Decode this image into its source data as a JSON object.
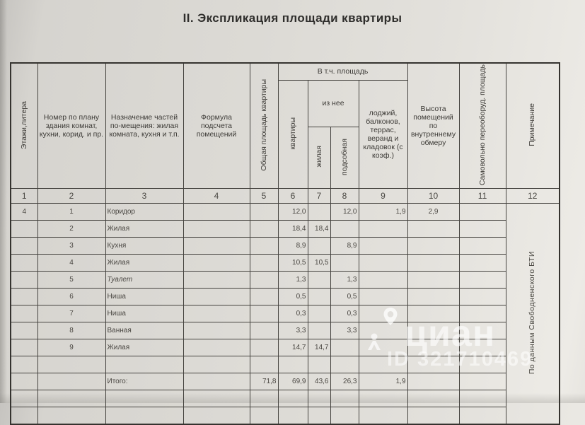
{
  "title": "II. Экспликация площади квартиры",
  "table": {
    "headers": {
      "col1": "Этажи,литера",
      "col2": "Номер по плану здания комнат, кухни, корид. и пр.",
      "col3": "Назначение частей по-мещения: жилая комната, кухня и т.п.",
      "col4": "Формула подсчета помещений",
      "col5": "Общая площадь квартиры",
      "group_area": "В т.ч. площадь",
      "col6": "квартиры",
      "group_iznee": "из нее",
      "col7": "жилая",
      "col8": "подсобная",
      "col9": "лоджий, балконов, террас, веранд и кладовок (с коэф.)",
      "col10": "Высота помещений по внутреннему обмеру",
      "col11": "Самовольно переоборуд. площадь",
      "col12": "Примечание"
    },
    "column_numbers": [
      "1",
      "2",
      "3",
      "4",
      "5",
      "6",
      "7",
      "8",
      "9",
      "10",
      "11",
      "12"
    ],
    "rows": [
      {
        "cells": [
          "4",
          "1",
          "Коридор",
          "",
          "",
          "12,0",
          "",
          "12,0",
          "1,9",
          "2,9",
          ""
        ]
      },
      {
        "cells": [
          "",
          "2",
          "Жилая",
          "",
          "",
          "18,4",
          "18,4",
          "",
          "",
          "",
          ""
        ]
      },
      {
        "cells": [
          "",
          "3",
          "Кухня",
          "",
          "",
          "8,9",
          "",
          "8,9",
          "",
          "",
          ""
        ]
      },
      {
        "cells": [
          "",
          "4",
          "Жилая",
          "",
          "",
          "10,5",
          "10,5",
          "",
          "",
          "",
          ""
        ]
      },
      {
        "cells": [
          "",
          "5",
          "Туалет",
          "",
          "",
          "1,3",
          "",
          "1,3",
          "",
          "",
          ""
        ],
        "em": true
      },
      {
        "cells": [
          "",
          "6",
          "Ниша",
          "",
          "",
          "0,5",
          "",
          "0,5",
          "",
          "",
          ""
        ]
      },
      {
        "cells": [
          "",
          "7",
          "Ниша",
          "",
          "",
          "0,3",
          "",
          "0,3",
          "",
          "",
          ""
        ]
      },
      {
        "cells": [
          "",
          "8",
          "Ванная",
          "",
          "",
          "3,3",
          "",
          "3,3",
          "",
          "",
          ""
        ]
      },
      {
        "cells": [
          "",
          "9",
          "Жилая",
          "",
          "",
          "14,7",
          "14,7",
          "",
          "",
          "",
          ""
        ]
      },
      {
        "cells": [
          "",
          "",
          "",
          "",
          "",
          "",
          "",
          "",
          "",
          "",
          ""
        ]
      },
      {
        "cells": [
          "",
          "",
          "Итого:",
          "",
          "71,8",
          "69,9",
          "43,6",
          "26,3",
          "1,9",
          "",
          ""
        ]
      },
      {
        "cells": [
          "",
          "",
          "",
          "",
          "",
          "",
          "",
          "",
          "",
          "",
          ""
        ]
      },
      {
        "cells": [
          "",
          "",
          "",
          "",
          "",
          "",
          "",
          "",
          "",
          "",
          ""
        ]
      }
    ],
    "note_vertical": "По данным Свободненского БТИ"
  },
  "watermark": {
    "brand": "циан",
    "id_label": "ID 321710469"
  }
}
